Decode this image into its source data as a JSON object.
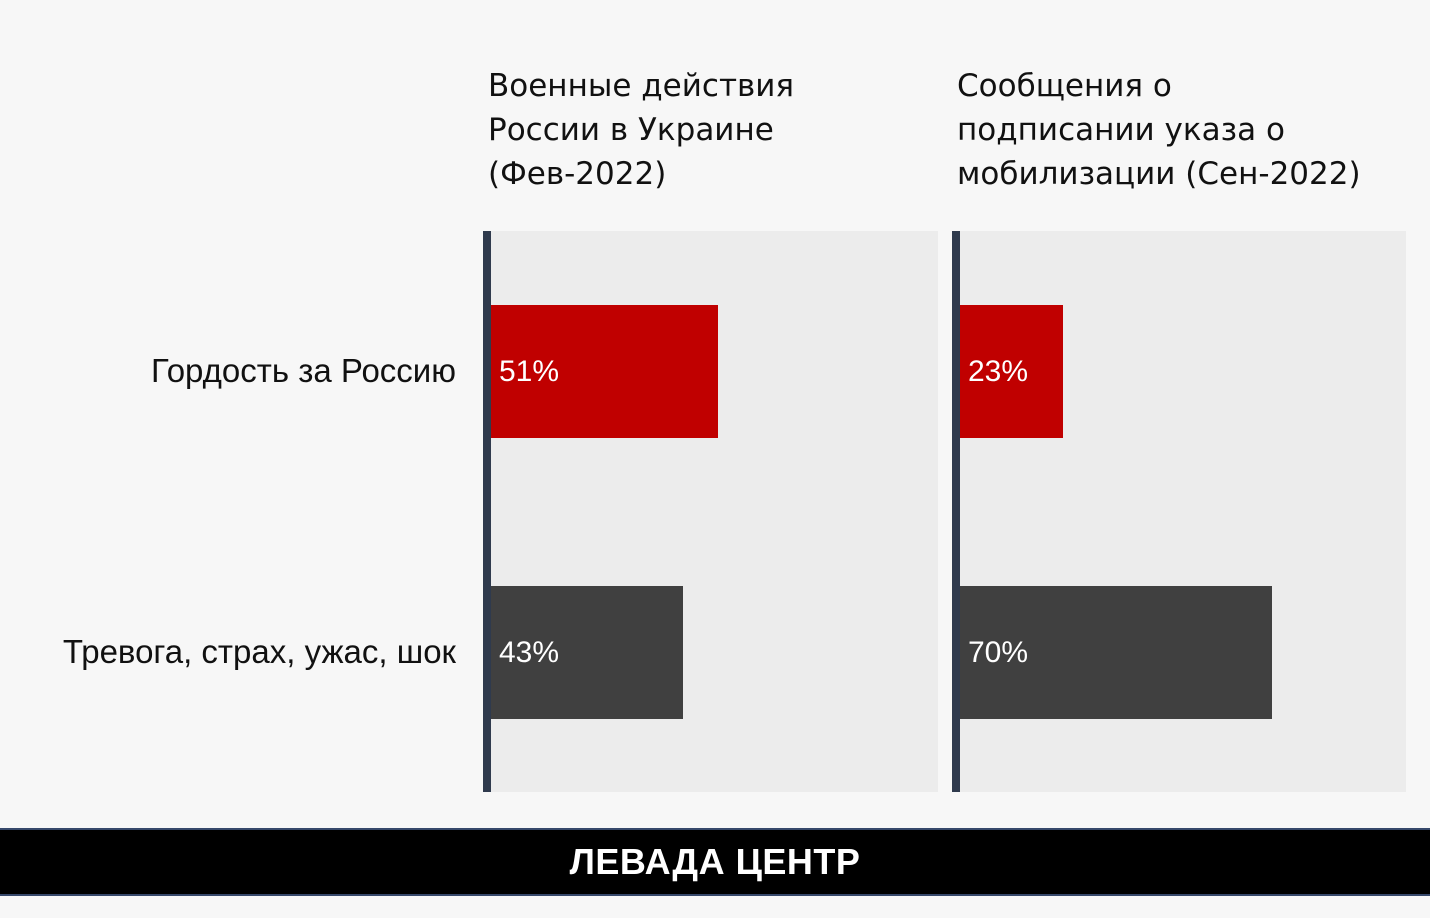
{
  "chart_data": {
    "type": "bar",
    "orientation": "horizontal",
    "xlim": [
      0,
      100
    ],
    "categories": [
      "Гордость за Россию",
      "Тревога, страх, ужас, шок"
    ],
    "category_colors": [
      "#c00000",
      "#404040"
    ],
    "panels": [
      {
        "title_lines": [
          "Военные действия",
          "России в Украине",
          "(Фев-2022)"
        ],
        "values": [
          51,
          43
        ],
        "labels": [
          "51%",
          "43%"
        ]
      },
      {
        "title_lines": [
          "Сообщения о",
          "подписании указа о",
          "мобилизации (Сен-2022)"
        ],
        "values": [
          23,
          70
        ],
        "labels": [
          "23%",
          "70%"
        ]
      }
    ]
  },
  "footer": {
    "brand": "ЛЕВАДА ЦЕНТР"
  }
}
